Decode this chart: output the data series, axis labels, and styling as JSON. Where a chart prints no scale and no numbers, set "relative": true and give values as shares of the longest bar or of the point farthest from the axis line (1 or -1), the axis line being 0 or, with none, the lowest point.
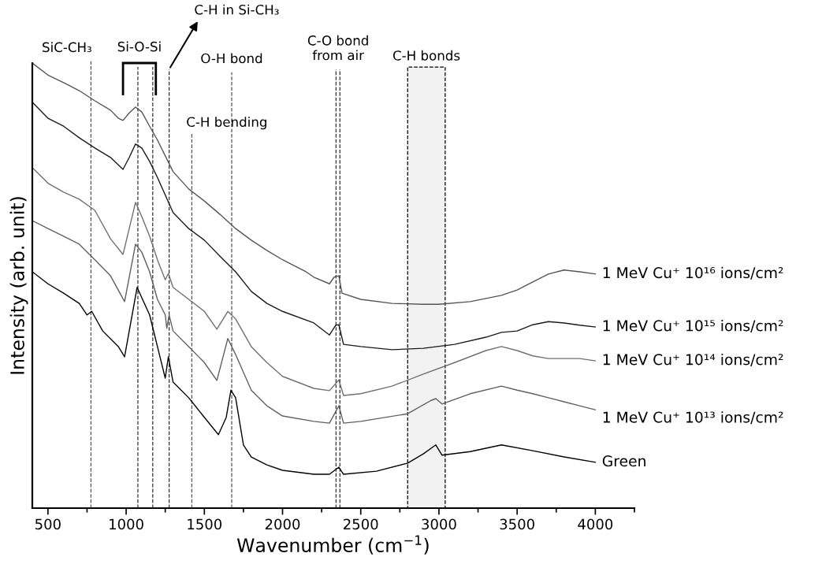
{
  "chart_data": {
    "type": "line",
    "xlabel": "Wavenumber (cm$^{−1}$)",
    "ylabel": "Intensity (arb. unit)",
    "relative": true,
    "xlim": [
      400,
      4250
    ],
    "xticks": [
      500,
      1000,
      1500,
      2000,
      2500,
      3000,
      3500,
      4000
    ],
    "tick_labels": "x",
    "grid": false,
    "line_style": "solid",
    "marker": "none",
    "series": [
      {
        "name": "1 MeV Cu⁺ 10¹⁶ ions/cm²",
        "color": "#555555",
        "x": [
          400,
          500,
          600,
          700,
          800,
          900,
          950,
          980,
          1020,
          1060,
          1100,
          1150,
          1200,
          1300,
          1400,
          1500,
          1600,
          1700,
          1800,
          1900,
          2000,
          2100,
          2150,
          2200,
          2300,
          2330,
          2360,
          2380,
          2500,
          2700,
          2900,
          3000,
          3200,
          3400,
          3500,
          3600,
          3700,
          3800,
          3900,
          4000
        ],
        "values": [
          1.0,
          0.973,
          0.956,
          0.938,
          0.915,
          0.894,
          0.876,
          0.871,
          0.888,
          0.901,
          0.89,
          0.858,
          0.827,
          0.756,
          0.717,
          0.69,
          0.66,
          0.628,
          0.602,
          0.579,
          0.558,
          0.54,
          0.531,
          0.519,
          0.504,
          0.519,
          0.522,
          0.483,
          0.469,
          0.46,
          0.458,
          0.458,
          0.464,
          0.478,
          0.49,
          0.508,
          0.526,
          0.535,
          0.531,
          0.526
        ]
      },
      {
        "name": "1 MeV Cu⁺ 10¹⁵ ions/cm²",
        "color": "#1a1a1a",
        "x": [
          400,
          500,
          600,
          700,
          800,
          900,
          980,
          1020,
          1060,
          1100,
          1150,
          1200,
          1300,
          1400,
          1500,
          1600,
          1700,
          1800,
          1900,
          2000,
          2200,
          2300,
          2340,
          2360,
          2390,
          2500,
          2700,
          2900,
          3100,
          3300,
          3400,
          3500,
          3600,
          3700,
          3800,
          3900,
          4000
        ],
        "values": [
          0.912,
          0.876,
          0.858,
          0.832,
          0.809,
          0.788,
          0.761,
          0.788,
          0.818,
          0.809,
          0.779,
          0.743,
          0.664,
          0.628,
          0.602,
          0.566,
          0.531,
          0.487,
          0.46,
          0.442,
          0.416,
          0.389,
          0.411,
          0.412,
          0.368,
          0.363,
          0.356,
          0.359,
          0.368,
          0.384,
          0.395,
          0.398,
          0.412,
          0.419,
          0.416,
          0.411,
          0.407
        ]
      },
      {
        "name": "1 MeV Cu⁺ 10¹⁴ ions/cm²",
        "color": "#707070",
        "x": [
          400,
          500,
          600,
          700,
          800,
          900,
          980,
          1060,
          1100,
          1150,
          1200,
          1250,
          1270,
          1300,
          1400,
          1500,
          1580,
          1650,
          1700,
          1800,
          1900,
          2000,
          2200,
          2300,
          2360,
          2390,
          2500,
          2700,
          2900,
          3100,
          3300,
          3400,
          3500,
          3600,
          3700,
          3800,
          3900,
          4000
        ],
        "values": [
          0.765,
          0.73,
          0.71,
          0.694,
          0.669,
          0.605,
          0.57,
          0.687,
          0.655,
          0.611,
          0.558,
          0.513,
          0.527,
          0.496,
          0.469,
          0.442,
          0.402,
          0.442,
          0.425,
          0.363,
          0.327,
          0.296,
          0.269,
          0.264,
          0.288,
          0.253,
          0.257,
          0.274,
          0.301,
          0.327,
          0.354,
          0.363,
          0.354,
          0.342,
          0.336,
          0.336,
          0.336,
          0.331
        ]
      },
      {
        "name": "1 MeV Cu⁺ 10¹³ ions/cm²",
        "color": "#606060",
        "x": [
          400,
          500,
          600,
          700,
          800,
          900,
          990,
          1060,
          1100,
          1150,
          1200,
          1250,
          1260,
          1275,
          1300,
          1400,
          1500,
          1580,
          1650,
          1700,
          1800,
          1900,
          2000,
          2200,
          2300,
          2360,
          2390,
          2500,
          2800,
          2950,
          2980,
          3020,
          3200,
          3400,
          3500,
          3600,
          3700,
          3800,
          3900,
          4000
        ],
        "values": [
          0.646,
          0.628,
          0.611,
          0.593,
          0.558,
          0.522,
          0.464,
          0.593,
          0.575,
          0.531,
          0.469,
          0.434,
          0.404,
          0.434,
          0.398,
          0.363,
          0.327,
          0.287,
          0.381,
          0.345,
          0.265,
          0.23,
          0.207,
          0.195,
          0.191,
          0.23,
          0.191,
          0.195,
          0.212,
          0.242,
          0.246,
          0.234,
          0.257,
          0.274,
          0.265,
          0.257,
          0.248,
          0.239,
          0.23,
          0.221
        ]
      },
      {
        "name": "Green",
        "color": "#000000",
        "x": [
          400,
          500,
          600,
          700,
          750,
          780,
          850,
          950,
          990,
          1070,
          1150,
          1200,
          1250,
          1270,
          1300,
          1400,
          1500,
          1590,
          1640,
          1670,
          1700,
          1750,
          1800,
          1900,
          2000,
          2200,
          2300,
          2360,
          2390,
          2600,
          2800,
          2900,
          2980,
          3020,
          3200,
          3400,
          3600,
          3800,
          4000
        ],
        "values": [
          0.531,
          0.504,
          0.483,
          0.46,
          0.434,
          0.442,
          0.398,
          0.363,
          0.34,
          0.496,
          0.434,
          0.363,
          0.292,
          0.34,
          0.283,
          0.248,
          0.204,
          0.165,
          0.204,
          0.265,
          0.248,
          0.142,
          0.115,
          0.097,
          0.085,
          0.076,
          0.076,
          0.092,
          0.076,
          0.083,
          0.101,
          0.122,
          0.142,
          0.119,
          0.127,
          0.142,
          0.129,
          0.115,
          0.103
        ]
      }
    ],
    "ref_lines": [
      {
        "axis": "x",
        "value": 775,
        "label": "SiC-CH₃",
        "line_style": "dashed",
        "color": "#555555"
      },
      {
        "axis": "x",
        "value": 1075,
        "line_style": "dashed",
        "color": "#333333"
      },
      {
        "axis": "x",
        "value": 1170,
        "line_style": "dashed",
        "color": "#333333"
      },
      {
        "axis": "x",
        "value": 1275,
        "label": "C-H in Si-CH₃",
        "line_style": "dashed",
        "color": "#333333"
      },
      {
        "axis": "x",
        "value": 1420,
        "label": "C-H bending",
        "line_style": "dashed",
        "color": "#555555"
      },
      {
        "axis": "x",
        "value": 1675,
        "label": "O-H bond",
        "line_style": "dashed",
        "color": "#555555"
      },
      {
        "axis": "x",
        "value": 2342,
        "label": "C-O bond\nfrom air",
        "line_style": "dashed",
        "color": "#333333"
      },
      {
        "axis": "x",
        "value": 2367,
        "line_style": "dashed",
        "color": "#333333"
      }
    ],
    "bands": [
      {
        "axis": "x",
        "from": 2800,
        "to": 3040,
        "label": "C-H bonds",
        "color": "#000000"
      }
    ],
    "annotations": [
      "Si-O-Si"
    ]
  }
}
